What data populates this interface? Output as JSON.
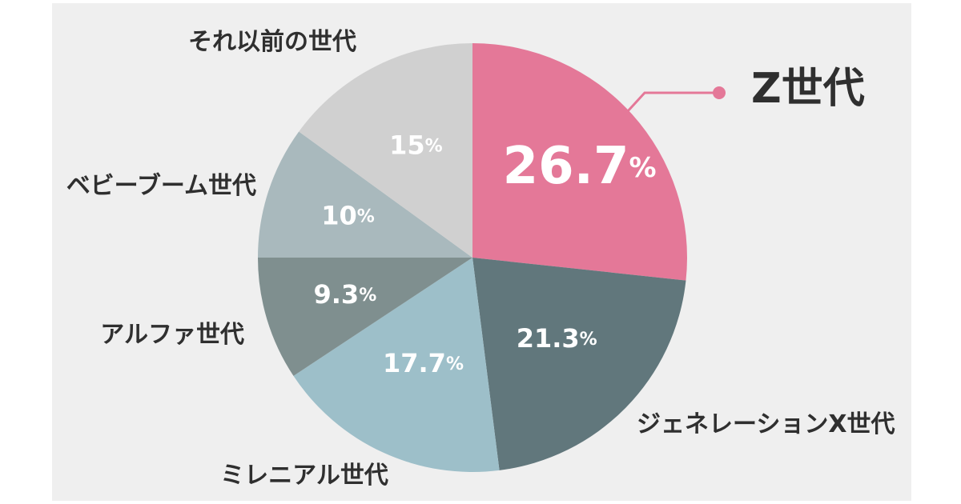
{
  "chart_data": {
    "type": "pie",
    "start": "12 o'clock",
    "direction": "clockwise",
    "unit": "%",
    "slices": [
      {
        "label": "Z世代",
        "value": 26.7,
        "value_label": "26.7",
        "color": "#e47898",
        "highlight": true
      },
      {
        "label": "ジェネレーションX世代",
        "value": 21.3,
        "value_label": "21.3",
        "color": "#61777c"
      },
      {
        "label": "ミレニアル世代",
        "value": 17.7,
        "value_label": "17.7",
        "color": "#9dbfc9"
      },
      {
        "label": "アルファ世代",
        "value": 9.3,
        "value_label": "9.3",
        "color": "#7f8f8f"
      },
      {
        "label": "ベビーブーム世代",
        "value": 10,
        "value_label": "10",
        "color": "#a9b9bd"
      },
      {
        "label": "それ以前の世代",
        "value": 15,
        "value_label": "15",
        "color": "#d0d0d0"
      }
    ]
  },
  "colors": {
    "background": "#efefef",
    "label_text": "#2f2f2f",
    "value_text": "#ffffff",
    "callout": "#e47898"
  }
}
